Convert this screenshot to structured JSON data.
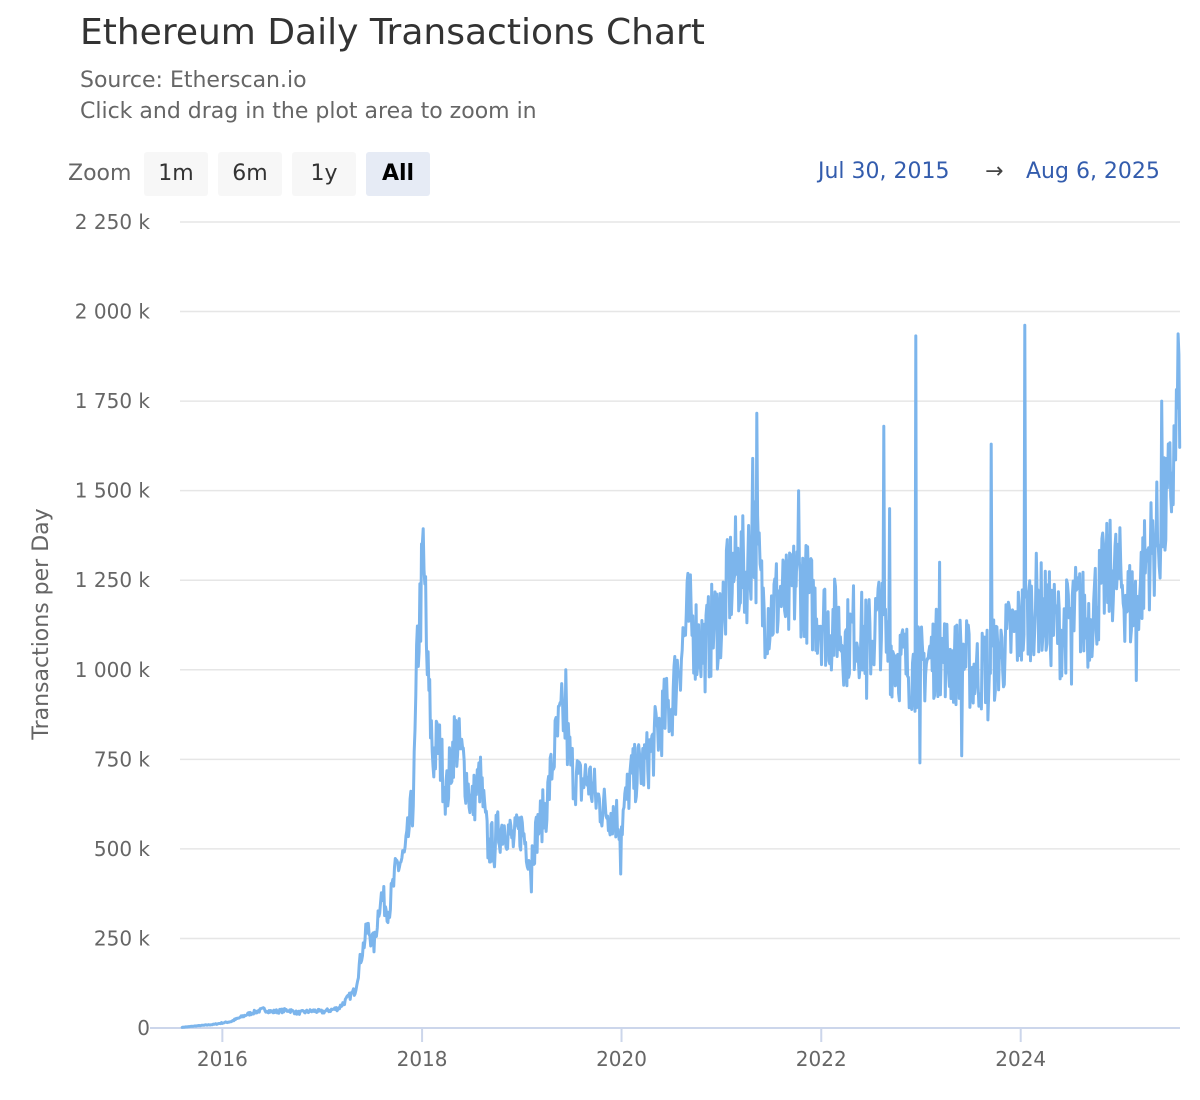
{
  "chart_data": {
    "type": "line",
    "title": "Ethereum Daily Transactions Chart",
    "subtitle": "Source: Etherscan.io",
    "instruction": "Click and drag in the plot area to zoom in",
    "ylabel": "Transactions per Day",
    "xlabel": "",
    "x_range": [
      "2015-07-30",
      "2025-08-06"
    ],
    "ylim": [
      0,
      2250000
    ],
    "y_ticks": [
      0,
      250000,
      500000,
      750000,
      1000000,
      1250000,
      1500000,
      1750000,
      2000000,
      2250000
    ],
    "y_tick_labels": [
      "0",
      "250 k",
      "500 k",
      "750 k",
      "1 000 k",
      "1 250 k",
      "1 500 k",
      "1 750 k",
      "2 000 k",
      "2 250 k"
    ],
    "x_ticks": [
      "2016-01-01",
      "2018-01-01",
      "2020-01-01",
      "2022-01-01",
      "2024-01-01"
    ],
    "x_tick_labels": [
      "2016",
      "2018",
      "2020",
      "2022",
      "2024"
    ],
    "grid": true,
    "line_color": "#7cb5ec",
    "series": [
      {
        "values": [
          [
            "2015-08-07",
            2000
          ],
          [
            "2015-10-01",
            6000
          ],
          [
            "2015-12-01",
            10000
          ],
          [
            "2016-02-01",
            18000
          ],
          [
            "2016-04-01",
            38000
          ],
          [
            "2016-05-01",
            45000
          ],
          [
            "2016-06-01",
            52000
          ],
          [
            "2016-07-01",
            45000
          ],
          [
            "2016-09-01",
            50000
          ],
          [
            "2016-10-01",
            42000
          ],
          [
            "2016-12-01",
            48000
          ],
          [
            "2017-01-01",
            45000
          ],
          [
            "2017-03-01",
            55000
          ],
          [
            "2017-04-01",
            80000
          ],
          [
            "2017-05-01",
            105000
          ],
          [
            "2017-05-20",
            190000
          ],
          [
            "2017-06-15",
            280000
          ],
          [
            "2017-07-10",
            230000
          ],
          [
            "2017-08-01",
            370000
          ],
          [
            "2017-09-01",
            330000
          ],
          [
            "2017-10-01",
            450000
          ],
          [
            "2017-11-01",
            480000
          ],
          [
            "2017-12-01",
            650000
          ],
          [
            "2017-12-15",
            1050000
          ],
          [
            "2018-01-05",
            1300000
          ],
          [
            "2018-01-20",
            1000000
          ],
          [
            "2018-02-10",
            750000
          ],
          [
            "2018-03-01",
            800000
          ],
          [
            "2018-04-01",
            650000
          ],
          [
            "2018-05-01",
            820000
          ],
          [
            "2018-06-01",
            740000
          ],
          [
            "2018-07-01",
            620000
          ],
          [
            "2018-08-01",
            700000
          ],
          [
            "2018-09-01",
            500000
          ],
          [
            "2018-10-01",
            540000
          ],
          [
            "2018-11-01",
            570000
          ],
          [
            "2018-12-01",
            520000
          ],
          [
            "2019-01-01",
            560000
          ],
          [
            "2019-02-01",
            470000
          ],
          [
            "2019-03-01",
            560000
          ],
          [
            "2019-04-01",
            620000
          ],
          [
            "2019-05-01",
            780000
          ],
          [
            "2019-06-01",
            880000
          ],
          [
            "2019-07-01",
            730000
          ],
          [
            "2019-08-01",
            680000
          ],
          [
            "2019-09-01",
            700000
          ],
          [
            "2019-10-01",
            640000
          ],
          [
            "2019-11-01",
            610000
          ],
          [
            "2019-12-01",
            600000
          ],
          [
            "2020-01-01",
            570000
          ],
          [
            "2020-02-01",
            690000
          ],
          [
            "2020-03-01",
            720000
          ],
          [
            "2020-04-01",
            740000
          ],
          [
            "2020-05-01",
            800000
          ],
          [
            "2020-06-01",
            870000
          ],
          [
            "2020-07-01",
            900000
          ],
          [
            "2020-08-01",
            1040000
          ],
          [
            "2020-09-01",
            1150000
          ],
          [
            "2020-10-01",
            1090000
          ],
          [
            "2020-11-01",
            1060000
          ],
          [
            "2020-12-01",
            1120000
          ],
          [
            "2021-01-01",
            1150000
          ],
          [
            "2021-02-01",
            1250000
          ],
          [
            "2021-03-01",
            1290000
          ],
          [
            "2021-04-01",
            1270000
          ],
          [
            "2021-05-01",
            1380000
          ],
          [
            "2021-06-01",
            1180000
          ],
          [
            "2021-07-01",
            1160000
          ],
          [
            "2021-08-01",
            1210000
          ],
          [
            "2021-09-01",
            1180000
          ],
          [
            "2021-10-01",
            1250000
          ],
          [
            "2021-11-01",
            1230000
          ],
          [
            "2021-12-01",
            1180000
          ],
          [
            "2022-01-01",
            1150000
          ],
          [
            "2022-02-01",
            1120000
          ],
          [
            "2022-03-01",
            1130000
          ],
          [
            "2022-04-01",
            1070000
          ],
          [
            "2022-05-01",
            1120000
          ],
          [
            "2022-06-01",
            1090000
          ],
          [
            "2022-07-01",
            1080000
          ],
          [
            "2022-08-01",
            1150000
          ],
          [
            "2022-09-01",
            1060000
          ],
          [
            "2022-10-01",
            1040000
          ],
          [
            "2022-11-01",
            1020000
          ],
          [
            "2022-12-01",
            1000000
          ],
          [
            "2023-01-01",
            1010000
          ],
          [
            "2023-02-01",
            1030000
          ],
          [
            "2023-03-01",
            1050000
          ],
          [
            "2023-04-01",
            1040000
          ],
          [
            "2023-05-01",
            1010000
          ],
          [
            "2023-06-01",
            1050000
          ],
          [
            "2023-07-01",
            1000000
          ],
          [
            "2023-08-01",
            990000
          ],
          [
            "2023-09-01",
            1020000
          ],
          [
            "2023-10-01",
            1030000
          ],
          [
            "2023-11-01",
            1060000
          ],
          [
            "2023-12-01",
            1100000
          ],
          [
            "2024-01-01",
            1120000
          ],
          [
            "2024-02-01",
            1160000
          ],
          [
            "2024-03-01",
            1190000
          ],
          [
            "2024-04-01",
            1150000
          ],
          [
            "2024-05-01",
            1130000
          ],
          [
            "2024-06-01",
            1100000
          ],
          [
            "2024-07-01",
            1150000
          ],
          [
            "2024-08-01",
            1170000
          ],
          [
            "2024-09-01",
            1130000
          ],
          [
            "2024-10-01",
            1190000
          ],
          [
            "2024-11-01",
            1250000
          ],
          [
            "2024-12-01",
            1280000
          ],
          [
            "2025-01-01",
            1250000
          ],
          [
            "2025-02-01",
            1180000
          ],
          [
            "2025-03-01",
            1200000
          ],
          [
            "2025-04-01",
            1300000
          ],
          [
            "2025-05-01",
            1350000
          ],
          [
            "2025-06-01",
            1400000
          ],
          [
            "2025-07-01",
            1500000
          ],
          [
            "2025-07-20",
            1620000
          ],
          [
            "2025-08-06",
            1820000
          ]
        ],
        "peaks": [
          [
            "2018-01-04",
            1349000
          ],
          [
            "2018-01-15",
            1260000
          ],
          [
            "2019-06-12",
            1000000
          ],
          [
            "2021-05-10",
            1716000
          ],
          [
            "2021-04-25",
            1590000
          ],
          [
            "2021-10-12",
            1500000
          ],
          [
            "2022-08-20",
            1680000
          ],
          [
            "2022-09-10",
            1450000
          ],
          [
            "2022-12-15",
            1932000
          ],
          [
            "2023-03-10",
            1300000
          ],
          [
            "2023-09-15",
            1630000
          ],
          [
            "2024-01-16",
            1962000
          ],
          [
            "2025-06-01",
            1750000
          ],
          [
            "2025-08-04",
            1880000
          ]
        ],
        "troughs": [
          [
            "2018-09-25",
            450000
          ],
          [
            "2019-02-05",
            380000
          ],
          [
            "2019-12-31",
            430000
          ],
          [
            "2022-06-18",
            920000
          ],
          [
            "2022-12-28",
            740000
          ],
          [
            "2023-06-01",
            760000
          ],
          [
            "2023-09-05",
            860000
          ],
          [
            "2024-07-05",
            960000
          ],
          [
            "2025-03-01",
            970000
          ]
        ]
      }
    ]
  },
  "toolbar": {
    "zoom_label": "Zoom",
    "buttons": [
      "1m",
      "6m",
      "1y",
      "All"
    ],
    "active_button": "All",
    "range_from": "Jul 30, 2015",
    "range_arrow": "→",
    "range_to": "Aug 6, 2025"
  }
}
